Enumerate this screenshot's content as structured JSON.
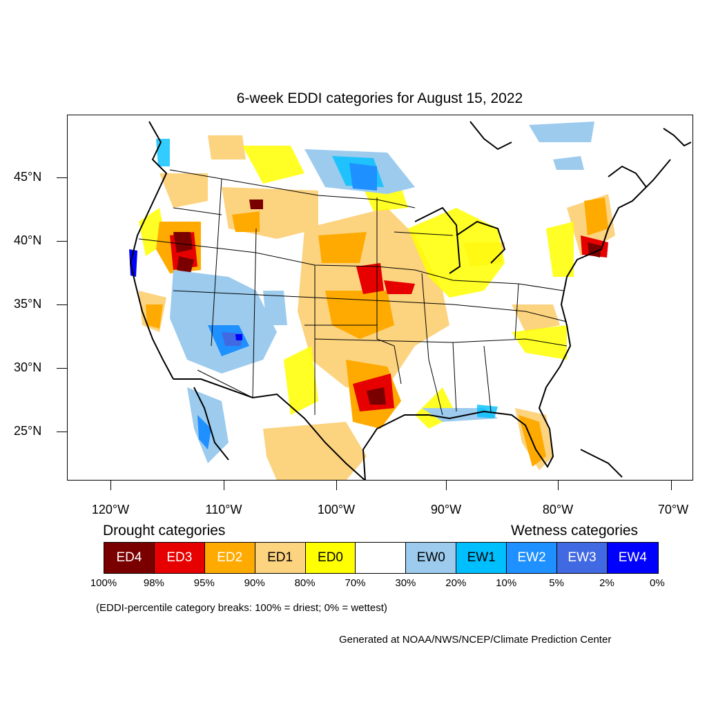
{
  "title": "6-week EDDI categories for August 15, 2022",
  "axes": {
    "y_labels": [
      "45°N",
      "40°N",
      "35°N",
      "30°N",
      "25°N"
    ],
    "x_labels": [
      "120°W",
      "110°W",
      "100°W",
      "90°W",
      "80°W",
      "70°W"
    ]
  },
  "legend": {
    "drought_heading": "Drought categories",
    "wetness_heading": "Wetness categories",
    "categories": [
      {
        "label": "ED4",
        "color": "#7a0000",
        "text_color": "#ffffff"
      },
      {
        "label": "ED3",
        "color": "#e60000",
        "text_color": "#ffffff"
      },
      {
        "label": "ED2",
        "color": "#ffaa00",
        "text_color": "#ffffff"
      },
      {
        "label": "ED1",
        "color": "#fcd37f",
        "text_color": "#000000"
      },
      {
        "label": "ED0",
        "color": "#ffff00",
        "text_color": "#000000"
      },
      {
        "label": "",
        "color": "#ffffff",
        "text_color": "#000000"
      },
      {
        "label": "EW0",
        "color": "#9ccbee",
        "text_color": "#000000"
      },
      {
        "label": "EW1",
        "color": "#00bfff",
        "text_color": "#000000"
      },
      {
        "label": "EW2",
        "color": "#1e90ff",
        "text_color": "#ffffff"
      },
      {
        "label": "EW3",
        "color": "#4169e1",
        "text_color": "#ffffff"
      },
      {
        "label": "EW4",
        "color": "#0000ff",
        "text_color": "#ffffff"
      }
    ],
    "breaks": [
      "100%",
      "98%",
      "95%",
      "90%",
      "80%",
      "70%",
      "30%",
      "20%",
      "10%",
      "5%",
      "2%",
      "0%"
    ]
  },
  "note": "(EDDI-percentile category breaks: 100% = driest; 0% = wettest)",
  "credit": "Generated at NOAA/NWS/NCEP/Climate Prediction Center"
}
